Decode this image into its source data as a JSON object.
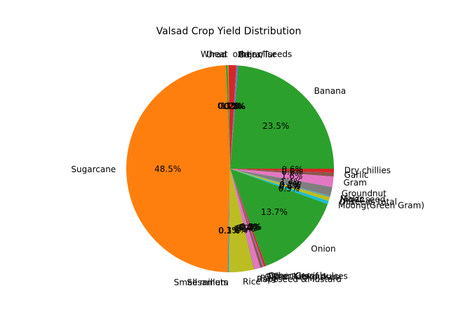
{
  "chart_data": {
    "type": "pie",
    "title": "Valsad Crop Yield Distribution",
    "start_angle_deg": 0,
    "direction": "counterclockwise",
    "slices": [
      {
        "label": "Banana",
        "value": 23.5,
        "pct_label": "23.5%",
        "color": "#2ca02c"
      },
      {
        "label": "Bajra",
        "value": 0.1,
        "pct_label": "0.1%",
        "color": "#1f77b4"
      },
      {
        "label": "Arhar/Tur",
        "value": 0.2,
        "pct_label": "0.2%",
        "color": "#9467bd"
      },
      {
        "label": "other oilseeds",
        "value": 1.2,
        "pct_label": "1.2%",
        "color": "#d62728"
      },
      {
        "label": "Wheat",
        "value": 0.1,
        "pct_label": "0.1%",
        "color": "#ff7f0e"
      },
      {
        "label": "Urad",
        "value": 0.3,
        "pct_label": "0.3%",
        "color": "#2ca02c"
      },
      {
        "label": "Sugarcane",
        "value": 48.5,
        "pct_label": "48.5%",
        "color": "#ff7f0e"
      },
      {
        "label": "Small millets",
        "value": 0.1,
        "pct_label": "0.1%",
        "color": "#1f77b4"
      },
      {
        "label": "Sesamum",
        "value": 0.1,
        "pct_label": "0.1%",
        "color": "#17becf"
      },
      {
        "label": "Rice",
        "value": 3.8,
        "pct_label": "3.8%",
        "color": "#bcbd22"
      },
      {
        "label": "Rapeseed &Mustard",
        "value": 0.1,
        "pct_label": "0.1%",
        "color": "#7f7f7f"
      },
      {
        "label": "Ragi",
        "value": 0.9,
        "pct_label": "0.9%",
        "color": "#e377c2"
      },
      {
        "label": "Other Rabi pulses",
        "value": 0.4,
        "pct_label": "0.4%",
        "color": "#8c564b"
      },
      {
        "label": "Other Kharif pulses",
        "value": 0.2,
        "pct_label": "0.2%",
        "color": "#9467bd"
      },
      {
        "label": "Other Cereals",
        "value": 0.3,
        "pct_label": "0.3%",
        "color": "#d62728"
      },
      {
        "label": "Onion",
        "value": 13.7,
        "pct_label": "13.7%",
        "color": "#2ca02c"
      },
      {
        "label": "Moong(Green Gram)",
        "value": 0.5,
        "pct_label": "0.5%",
        "color": "#17becf"
      },
      {
        "label": "Oilseeds total",
        "value": 0.6,
        "pct_label": "0.6%",
        "color": "#bcbd22"
      },
      {
        "label": "Niger seed",
        "value": 0.1,
        "pct_label": "0.1%",
        "color": "#7f7f7f"
      },
      {
        "label": "Maize",
        "value": 0.1,
        "pct_label": "0.1%",
        "color": "#17becf"
      },
      {
        "label": "Groundnut",
        "value": 1.4,
        "pct_label": "1.4%",
        "color": "#7f7f7f"
      },
      {
        "label": "Gram",
        "value": 1.6,
        "pct_label": "1.6%",
        "color": "#e377c2"
      },
      {
        "label": "Garlic",
        "value": 0.6,
        "pct_label": "0.6%",
        "color": "#8c564b"
      },
      {
        "label": "Dry chillies",
        "value": 0.6,
        "pct_label": "0.6%",
        "color": "#d62728"
      }
    ]
  }
}
